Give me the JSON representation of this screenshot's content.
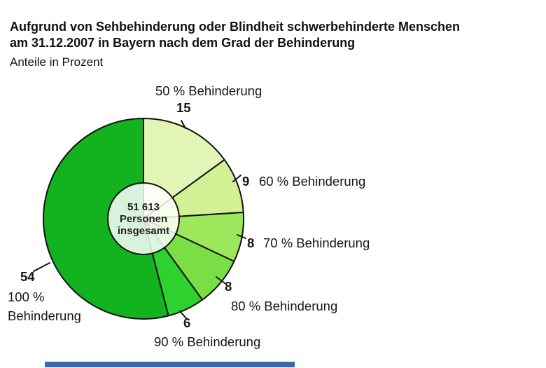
{
  "header": {
    "title": "Aufgrund von Sehbehinderung oder Blindheit schwerbehinderte Menschen\nam 31.12.2007 in Bayern nach dem Grad der Behinderung",
    "subtitle": "Anteile in Prozent"
  },
  "chart_data": {
    "type": "pie",
    "title": "Aufgrund von Sehbehinderung oder Blindheit schwerbehinderte Menschen am 31.12.2007 in Bayern nach dem Grad der Behinderung",
    "subtitle": "Anteile in Prozent",
    "unit": "Prozent",
    "categories": [
      "50 % Behinderung",
      "60 % Behinderung",
      "70 % Behinderung",
      "80 % Behinderung",
      "90 % Behinderung",
      "100 % Behinderung"
    ],
    "values": [
      15,
      9,
      8,
      8,
      6,
      54
    ],
    "colors": [
      "#e2f5b7",
      "#d2f094",
      "#9ce75c",
      "#79df44",
      "#2ed22e",
      "#12b31f"
    ],
    "outline_color": "#111111",
    "start_angle_deg": -90,
    "direction": "clockwise",
    "legend": "none",
    "center_label": "51 613\nPersonen\ninsgesamt",
    "total_persons": "51 613"
  },
  "footer": {
    "accent_color": "#3a68b2"
  }
}
